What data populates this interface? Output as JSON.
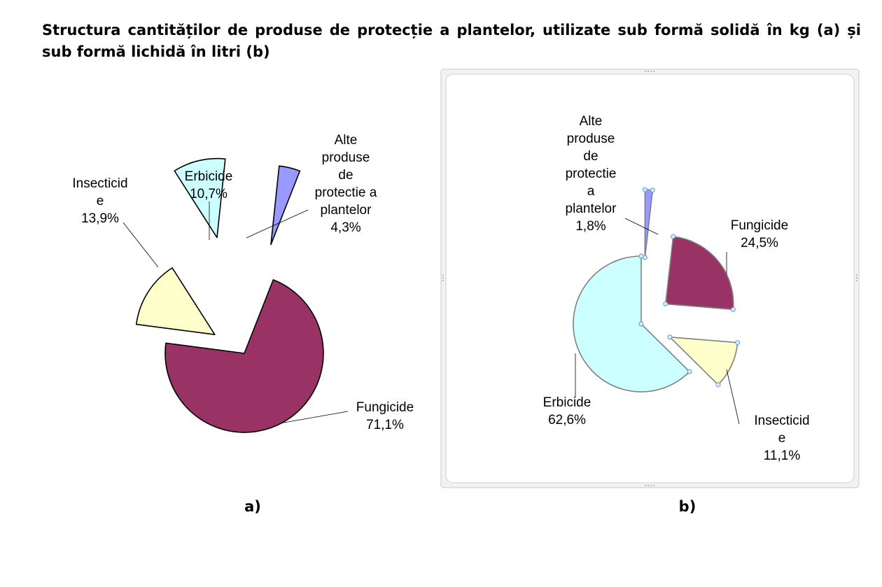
{
  "title": "Structura cantităților de produse de protecție a plantelor, utilizate sub formă solidă în kg (a) și sub formă lichidă în litri (b)",
  "colors": {
    "alte": "#9999ff",
    "fungicide": "#993366",
    "insecticide": "#ffffcc",
    "erbicide": "#ccffff"
  },
  "chart_data": [
    {
      "type": "pie",
      "caption": "a)",
      "slices": [
        {
          "key": "alte",
          "label_lines": [
            "Alte",
            "produse",
            "de",
            "protectie a",
            "plantelor"
          ],
          "value_text": "4,3%",
          "value": 4.3
        },
        {
          "key": "fungicide",
          "label_lines": [
            "Fungicide"
          ],
          "value_text": "71,1%",
          "value": 71.1
        },
        {
          "key": "insecticide",
          "label_lines": [
            "Insecticid",
            "e"
          ],
          "value_text": "13,9%",
          "value": 13.9
        },
        {
          "key": "erbicide",
          "label_lines": [
            "Erbicide"
          ],
          "value_text": "10,7%",
          "value": 10.7
        }
      ]
    },
    {
      "type": "pie",
      "caption": "b)",
      "slices": [
        {
          "key": "alte",
          "label_lines": [
            "Alte",
            "produse",
            "de",
            "protectie",
            "a",
            "plantelor"
          ],
          "value_text": "1,8%",
          "value": 1.8
        },
        {
          "key": "fungicide",
          "label_lines": [
            "Fungicide"
          ],
          "value_text": "24,5%",
          "value": 24.5
        },
        {
          "key": "insecticide",
          "label_lines": [
            "Insecticid",
            "e"
          ],
          "value_text": "11,1%",
          "value": 11.1
        },
        {
          "key": "erbicide",
          "label_lines": [
            "Erbicide"
          ],
          "value_text": "62,6%",
          "value": 62.6
        }
      ]
    }
  ]
}
